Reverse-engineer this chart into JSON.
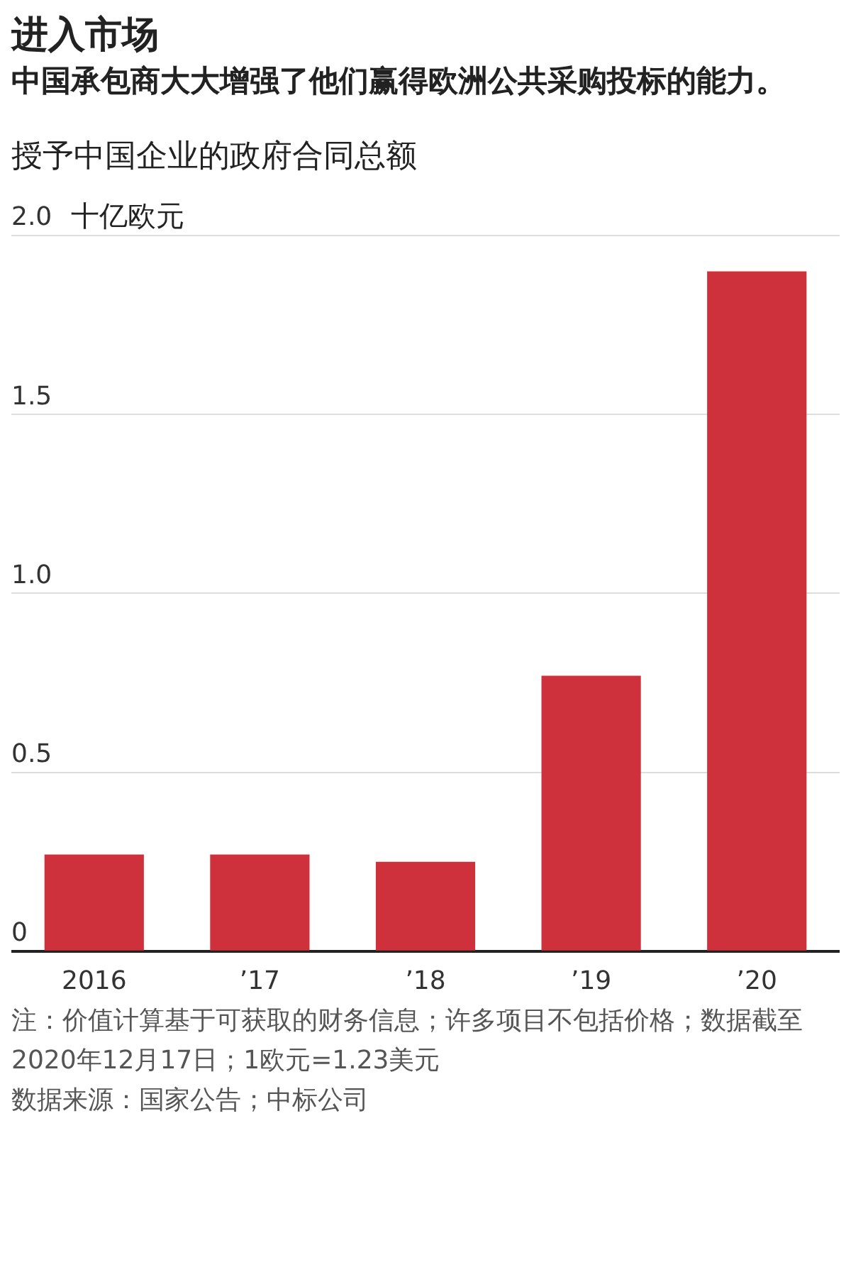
{
  "chart_data": {
    "type": "bar",
    "title": "进入市场",
    "subtitle": "中国承包商大大增强了他们赢得欧洲公共采购投标的能力。",
    "ylabel": "十亿欧元",
    "categories": [
      "2016",
      "’17",
      "’18",
      "’19",
      "’20"
    ],
    "values": [
      0.27,
      0.27,
      0.25,
      0.77,
      1.9
    ],
    "color": "#ce303c",
    "ylim": [
      0,
      2
    ],
    "yticks": [
      0,
      0.5,
      {
        "value": 1,
        "label": "1.0"
      },
      1.5,
      {
        "value": 2,
        "label": "2.0"
      }
    ],
    "grid": "y",
    "legend": false,
    "annotations": [
      "授予中国企业的政府合同总额",
      "注：价值计算基于可获取的财务信息；许多项目不包括价格；数据截至2020年12月17日；1欧元=1.23美元",
      "数据来源：国家公告；中标公司"
    ]
  }
}
